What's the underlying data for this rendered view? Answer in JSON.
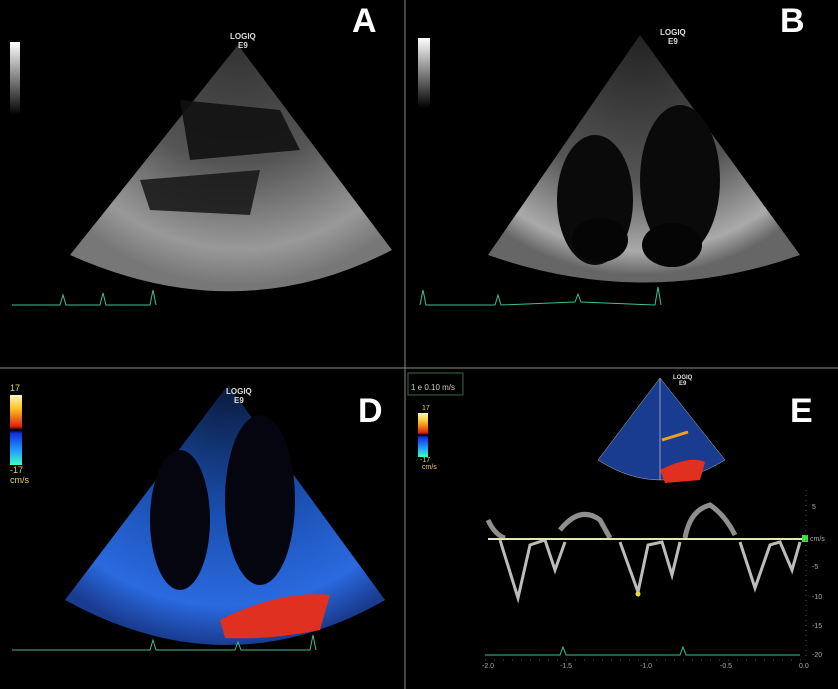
{
  "panels": {
    "a": {
      "label": "A",
      "device": "LOGIQ",
      "model": "E9"
    },
    "b": {
      "label": "B",
      "device": "LOGIQ",
      "model": "E9"
    },
    "d": {
      "label": "D",
      "device": "LOGIQ",
      "model": "E9",
      "scale_max": "17",
      "scale_min": "-17",
      "scale_unit": "cm/s"
    },
    "e": {
      "label": "E",
      "device": "LOGIQ",
      "model": "E9",
      "scale_max": "17",
      "scale_min": "-17",
      "scale_unit": "cm/s",
      "sweep_box": "1 e 0.10 m/s",
      "y_ticks": [
        "5",
        "cm/s",
        "-5",
        "-10",
        "-15",
        "-20"
      ],
      "x_ticks": [
        "-2.0",
        "-1.5",
        "-1.0",
        "-0.5",
        "0.0"
      ]
    }
  },
  "colors": {
    "ecg": "#3fbf8f",
    "divider": "#888888",
    "doppler_baseline": "#e6e6b0",
    "color_label": "#e8d26a"
  }
}
